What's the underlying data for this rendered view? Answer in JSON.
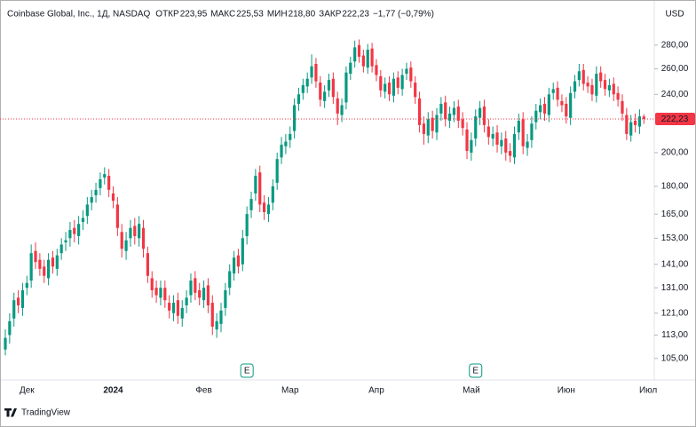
{
  "chart_data": {
    "type": "candlestick",
    "title": "Coinbase Global, Inc., 1Д, NASDAQ",
    "legend_items": [
      {
        "label": "ОТКР",
        "value": "223,95"
      },
      {
        "label": "МАКС",
        "value": "225,53"
      },
      {
        "label": "МИН",
        "value": "218,80"
      },
      {
        "label": "ЗАКР",
        "value": "222,23"
      }
    ],
    "change": "−1,77 (−0,79%)",
    "currency": "USD",
    "brand": "TradingView",
    "event_markers": [
      "E",
      "E"
    ],
    "log_scale": true,
    "grid": false,
    "up_color": "#089981",
    "down_color": "#f23645",
    "ylim": [
      99,
      318
    ],
    "yticks": [
      {
        "value": 105,
        "label": "105,00"
      },
      {
        "value": 113,
        "label": "113,00"
      },
      {
        "value": 121,
        "label": "121,00"
      },
      {
        "value": 131,
        "label": "131,00"
      },
      {
        "value": 141,
        "label": "141,00"
      },
      {
        "value": 153,
        "label": "153,00"
      },
      {
        "value": 165,
        "label": "165,00"
      },
      {
        "value": 180,
        "label": "180,00"
      },
      {
        "value": 200,
        "label": "200,00"
      },
      {
        "value": 240,
        "label": "240,00"
      },
      {
        "value": 260,
        "label": "260,00"
      },
      {
        "value": 280,
        "label": "280,00"
      }
    ],
    "last_price": {
      "value": 222.23,
      "label": "222,23"
    },
    "categories": [
      null,
      null,
      null,
      null,
      null,
      "Дек",
      null,
      null,
      null,
      null,
      null,
      null,
      null,
      null,
      null,
      null,
      null,
      null,
      null,
      null,
      null,
      null,
      null,
      null,
      null,
      "2024",
      null,
      null,
      null,
      null,
      null,
      null,
      null,
      null,
      null,
      null,
      null,
      null,
      null,
      null,
      null,
      null,
      null,
      null,
      null,
      null,
      "Фев",
      null,
      null,
      null,
      null,
      null,
      null,
      null,
      null,
      null,
      null,
      null,
      null,
      null,
      null,
      null,
      null,
      null,
      null,
      null,
      "Мар",
      null,
      null,
      null,
      null,
      null,
      null,
      null,
      null,
      null,
      null,
      null,
      null,
      null,
      null,
      null,
      null,
      null,
      null,
      null,
      "Апр",
      null,
      null,
      null,
      null,
      null,
      null,
      null,
      null,
      null,
      null,
      null,
      null,
      null,
      null,
      null,
      null,
      null,
      null,
      null,
      null,
      null,
      "Май",
      null,
      null,
      null,
      null,
      null,
      null,
      null,
      null,
      null,
      null,
      null,
      null,
      null,
      null,
      null,
      null,
      null,
      null,
      null,
      null,
      null,
      "Июн",
      null,
      null,
      null,
      null,
      null,
      null,
      null,
      null,
      null,
      null,
      null,
      null,
      null,
      null,
      null,
      null,
      null,
      null,
      "Июл"
    ],
    "open": [
      108,
      113,
      119,
      127,
      123,
      131,
      134,
      147,
      143,
      140,
      135,
      144,
      139,
      146,
      151,
      153,
      158,
      154,
      161,
      164,
      171,
      175,
      179,
      185,
      186,
      176,
      170,
      156,
      147,
      153,
      159,
      153,
      158,
      146,
      135,
      131,
      127,
      131,
      125,
      121,
      126,
      119,
      124,
      128,
      135,
      130,
      126,
      132,
      125,
      115,
      117,
      123,
      131,
      137,
      145,
      141,
      154,
      167,
      176,
      188,
      171,
      165,
      171,
      182,
      197,
      204,
      208,
      214,
      233,
      241,
      246,
      253,
      264,
      249,
      235,
      243,
      252,
      237,
      225,
      234,
      256,
      266,
      280,
      271,
      261,
      277,
      263,
      254,
      242,
      249,
      239,
      253,
      244,
      256,
      261,
      249,
      237,
      219,
      211,
      223,
      213,
      226,
      234,
      221,
      225,
      231,
      222,
      215,
      200,
      209,
      223,
      231,
      217,
      209,
      213,
      204,
      209,
      201,
      197,
      213,
      222,
      203,
      208,
      220,
      227,
      233,
      225,
      241,
      245,
      235,
      233,
      223,
      242,
      251,
      259,
      249,
      247,
      239,
      257,
      251,
      243,
      248,
      241,
      235,
      225,
      211,
      221,
      217,
      223.95,
      null
    ],
    "high": [
      115,
      121,
      129,
      130,
      133,
      136,
      150,
      151,
      146,
      143,
      146,
      147,
      148,
      153,
      156,
      161,
      162,
      164,
      167,
      174,
      178,
      182,
      188,
      191,
      190,
      180,
      174,
      160,
      156,
      162,
      163,
      164,
      162,
      149,
      138,
      134,
      134,
      134,
      128,
      128,
      129,
      126,
      130,
      137,
      138,
      133,
      134,
      135,
      128,
      121,
      125,
      133,
      141,
      147,
      148,
      157,
      169,
      177,
      190,
      192,
      175,
      174,
      184,
      200,
      210,
      212,
      217,
      237,
      245,
      252,
      257,
      272,
      269,
      254,
      247,
      256,
      257,
      242,
      237,
      262,
      270,
      284,
      285,
      276,
      281,
      282,
      268,
      259,
      253,
      254,
      257,
      258,
      260,
      265,
      266,
      254,
      242,
      224,
      227,
      228,
      230,
      238,
      239,
      231,
      235,
      236,
      227,
      220,
      213,
      229,
      235,
      236,
      222,
      217,
      218,
      213,
      214,
      206,
      217,
      226,
      227,
      212,
      224,
      233,
      237,
      238,
      245,
      249,
      250,
      240,
      238,
      246,
      255,
      264,
      264,
      254,
      252,
      262,
      262,
      256,
      252,
      253,
      246,
      240,
      230,
      225,
      226,
      229,
      225.53,
      null
    ],
    "low": [
      106,
      110,
      116,
      121,
      120,
      128,
      131,
      139,
      136,
      133,
      132,
      137,
      136,
      143,
      147,
      149,
      151,
      150,
      157,
      160,
      167,
      171,
      175,
      181,
      174,
      168,
      154,
      144,
      143,
      149,
      150,
      149,
      144,
      133,
      127,
      125,
      124,
      123,
      119,
      118,
      117,
      116,
      121,
      125,
      126,
      124,
      123,
      121,
      113,
      112,
      114,
      120,
      128,
      134,
      137,
      138,
      150,
      163,
      172,
      166,
      162,
      161,
      167,
      178,
      193,
      199,
      203,
      209,
      228,
      236,
      241,
      248,
      245,
      231,
      230,
      238,
      233,
      218,
      220,
      229,
      251,
      261,
      265,
      257,
      256,
      257,
      250,
      238,
      237,
      235,
      234,
      240,
      239,
      251,
      245,
      233,
      213,
      205,
      206,
      209,
      208,
      221,
      217,
      216,
      220,
      216,
      211,
      196,
      195,
      204,
      218,
      213,
      205,
      204,
      200,
      199,
      195,
      194,
      193,
      208,
      199,
      198,
      203,
      215,
      222,
      221,
      220,
      236,
      231,
      227,
      219,
      218,
      237,
      246,
      243,
      241,
      235,
      234,
      245,
      239,
      238,
      235,
      231,
      221,
      208,
      207,
      213,
      212,
      218.8,
      null
    ],
    "close": [
      112,
      118,
      126,
      124,
      130,
      133,
      146,
      142,
      139,
      136,
      143,
      140,
      145,
      150,
      152,
      157,
      155,
      160,
      163,
      170,
      174,
      178,
      184,
      187,
      178,
      172,
      158,
      148,
      152,
      158,
      154,
      160,
      148,
      136,
      130,
      128,
      131,
      126,
      122,
      125,
      120,
      123,
      127,
      134,
      129,
      127,
      131,
      124,
      116,
      118,
      122,
      130,
      138,
      144,
      140,
      153,
      165,
      173,
      186,
      170,
      166,
      170,
      180,
      196,
      205,
      207,
      212,
      232,
      240,
      247,
      252,
      262,
      250,
      236,
      242,
      251,
      238,
      226,
      232,
      257,
      265,
      278,
      270,
      262,
      276,
      262,
      255,
      243,
      248,
      240,
      252,
      245,
      255,
      260,
      250,
      238,
      218,
      212,
      222,
      214,
      225,
      233,
      222,
      226,
      230,
      221,
      216,
      201,
      208,
      224,
      230,
      218,
      210,
      212,
      205,
      208,
      200,
      198,
      212,
      221,
      204,
      207,
      219,
      228,
      232,
      226,
      240,
      244,
      236,
      232,
      224,
      241,
      250,
      258,
      248,
      246,
      240,
      256,
      250,
      244,
      247,
      240,
      236,
      226,
      212,
      220,
      218,
      224,
      222.23,
      null
    ]
  }
}
